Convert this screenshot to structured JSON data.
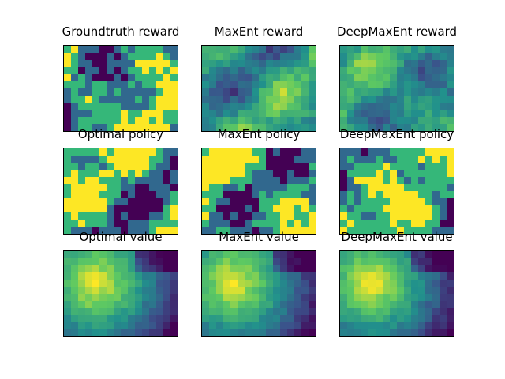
{
  "colormap": "viridis",
  "palette": [
    "#440154",
    "#31688e",
    "#35b779",
    "#fde725"
  ],
  "chart_data": [
    {
      "type": "heatmap",
      "title": "Groundtruth reward",
      "rows": 12,
      "cols": 16,
      "kind": "categorical",
      "seed": 11
    },
    {
      "type": "heatmap",
      "title": "MaxEnt reward",
      "rows": 12,
      "cols": 16,
      "kind": "continuous",
      "seed": 23
    },
    {
      "type": "heatmap",
      "title": "DeepMaxEnt reward",
      "rows": 12,
      "cols": 16,
      "kind": "continuous",
      "seed": 37
    },
    {
      "type": "heatmap",
      "title": "Optimal policy",
      "rows": 12,
      "cols": 16,
      "kind": "categorical",
      "seed": 41
    },
    {
      "type": "heatmap",
      "title": "MaxEnt policy",
      "rows": 12,
      "cols": 16,
      "kind": "categorical",
      "seed": 53
    },
    {
      "type": "heatmap",
      "title": "DeepMaxEnt policy",
      "rows": 12,
      "cols": 16,
      "kind": "categorical",
      "seed": 67
    },
    {
      "type": "heatmap",
      "title": "Optimal value",
      "rows": 12,
      "cols": 16,
      "kind": "value",
      "seed": 71
    },
    {
      "type": "heatmap",
      "title": "MaxEnt value",
      "rows": 12,
      "cols": 16,
      "kind": "value",
      "seed": 83
    },
    {
      "type": "heatmap",
      "title": "DeepMaxEnt value",
      "rows": 12,
      "cols": 16,
      "kind": "value",
      "seed": 97
    }
  ]
}
